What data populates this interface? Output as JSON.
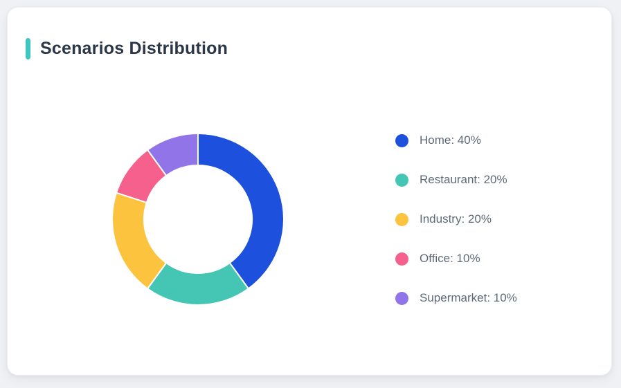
{
  "page": {
    "background_color": "#f0f1f4"
  },
  "card": {
    "background_color": "#ffffff",
    "accent_bar_color": "#3ec6c1"
  },
  "header": {
    "title": "Scenarios Distribution"
  },
  "chart_data": {
    "type": "pie",
    "subtype": "donut",
    "title": "Scenarios Distribution",
    "start_angle_deg": 0,
    "direction": "clockwise",
    "categories": [
      "Home",
      "Restaurant",
      "Industry",
      "Office",
      "Supermarket"
    ],
    "values": [
      40,
      20,
      20,
      10,
      10
    ],
    "unit": "%",
    "colors": [
      "#1e50de",
      "#45c6b5",
      "#fcc33e",
      "#f5618c",
      "#9174e8"
    ],
    "legend_position": "right",
    "legend": [
      {
        "label": "Home: 40%",
        "color": "#1e50de"
      },
      {
        "label": "Restaurant: 20%",
        "color": "#45c6b5"
      },
      {
        "label": "Industry: 20%",
        "color": "#fcc33e"
      },
      {
        "label": "Office: 10%",
        "color": "#f5618c"
      },
      {
        "label": "Supermarket: 10%",
        "color": "#9174e8"
      }
    ]
  }
}
